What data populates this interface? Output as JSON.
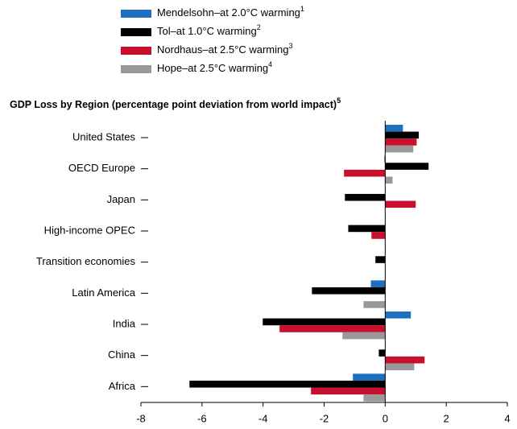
{
  "chart_data": {
    "type": "hbar",
    "title": "GDP Loss by Region (percentage point deviation from world impact)",
    "title_footnote": "5",
    "categories": [
      "United States",
      "OECD Europe",
      "Japan",
      "High-income OPEC",
      "Transition economies",
      "Latin America",
      "India",
      "China",
      "Africa"
    ],
    "series": [
      {
        "name": "Mendelsohn–at 2.0°C warming",
        "footnote": "1",
        "color": "#1f6fbf",
        "values": [
          0.58,
          -0.03,
          null,
          null,
          null,
          -0.47,
          0.84,
          null,
          -1.06
        ]
      },
      {
        "name": "Tol–at 1.0°C warming",
        "footnote": "2",
        "color": "#000000",
        "values": [
          1.1,
          1.42,
          -1.32,
          -1.21,
          -0.32,
          -2.4,
          -4.01,
          -0.21,
          -6.41
        ]
      },
      {
        "name": "Nordhaus–at 2.5°C warming",
        "footnote": "3",
        "color": "#c8102e",
        "values": [
          1.03,
          -1.35,
          1.0,
          -0.45,
          null,
          null,
          -3.46,
          1.29,
          -2.43
        ]
      },
      {
        "name": "Hope–at 2.5°C warming",
        "footnote": "4",
        "color": "#999999",
        "values": [
          0.92,
          0.24,
          null,
          null,
          null,
          -0.71,
          -1.4,
          0.95,
          -0.71
        ]
      }
    ],
    "xlim": [
      -8,
      4
    ],
    "xticks": [
      -8,
      -6,
      -4,
      -2,
      0,
      2,
      4
    ]
  }
}
